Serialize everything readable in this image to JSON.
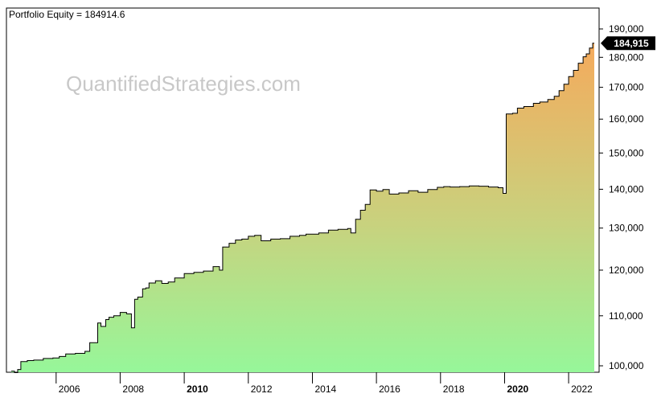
{
  "header": {
    "equity_label": "Portfolio Equity = 184914.6"
  },
  "watermark": {
    "text": "QuantifiedStrategies.com"
  },
  "colors": {
    "background": "#ffffff",
    "plot_border": "#000000",
    "gradient_top": "#f5aa5c",
    "gradient_mid": "#c8d27e",
    "gradient_bottom": "#96f79a",
    "equity_line": "#000000",
    "watermark": "#c8c8c8",
    "last_value_badge_bg": "#000000",
    "last_value_badge_text": "#ffffff",
    "axis_text": "#000000"
  },
  "chart_data": {
    "type": "area",
    "title": "",
    "xlabel": "",
    "ylabel": "",
    "y_scale": "log",
    "ylim": [
      98200,
      193800
    ],
    "xlim": [
      2004.55,
      2022.85
    ],
    "grid": false,
    "legend": "none",
    "last_value_label": "184,915",
    "last_value": 184914.6,
    "x_ticks": [
      {
        "label": "2006",
        "value": 2006,
        "bold": false
      },
      {
        "label": "2008",
        "value": 2008,
        "bold": false
      },
      {
        "label": "2010",
        "value": 2010,
        "bold": true
      },
      {
        "label": "2012",
        "value": 2012,
        "bold": false
      },
      {
        "label": "2014",
        "value": 2014,
        "bold": false
      },
      {
        "label": "2016",
        "value": 2016,
        "bold": false
      },
      {
        "label": "2018",
        "value": 2018,
        "bold": false
      },
      {
        "label": "2020",
        "value": 2020,
        "bold": true
      },
      {
        "label": "2022",
        "value": 2022,
        "bold": false
      }
    ],
    "y_ticks": [
      {
        "label": "100,000",
        "value": 100000
      },
      {
        "label": "110,000",
        "value": 110000
      },
      {
        "label": "120,000",
        "value": 120000
      },
      {
        "label": "130,000",
        "value": 130000
      },
      {
        "label": "140,000",
        "value": 140000
      },
      {
        "label": "150,000",
        "value": 150000
      },
      {
        "label": "160,000",
        "value": 160000
      },
      {
        "label": "170,000",
        "value": 170000
      },
      {
        "label": "180,000",
        "value": 180000
      },
      {
        "label": "190,000",
        "value": 190000
      }
    ],
    "series": [
      {
        "x": [
          2004.6,
          2004.7,
          2004.8,
          2004.9,
          2005.1,
          2005.3,
          2005.6,
          2005.9,
          2006.1,
          2006.3,
          2006.6,
          2006.9,
          2007.05,
          2007.3,
          2007.4,
          2007.55,
          2007.65,
          2007.8,
          2008.0,
          2008.2,
          2008.35,
          2008.45,
          2008.55,
          2008.7,
          2008.8,
          2008.9,
          2009.1,
          2009.3,
          2009.5,
          2009.7,
          2010.0,
          2010.3,
          2010.6,
          2010.9,
          2011.1,
          2011.2,
          2011.4,
          2011.6,
          2011.8,
          2012.0,
          2012.2,
          2012.4,
          2012.7,
          2013.0,
          2013.3,
          2013.6,
          2013.8,
          2014.0,
          2014.2,
          2014.5,
          2014.8,
          2015.1,
          2015.2,
          2015.35,
          2015.5,
          2015.65,
          2015.8,
          2016.0,
          2016.2,
          2016.4,
          2016.7,
          2017.0,
          2017.3,
          2017.6,
          2017.9,
          2018.1,
          2018.3,
          2018.6,
          2018.9,
          2019.2,
          2019.5,
          2019.8,
          2019.95,
          2020.05,
          2020.25,
          2020.4,
          2020.6,
          2020.9,
          2021.1,
          2021.35,
          2021.55,
          2021.7,
          2021.85,
          2022.0,
          2022.15,
          2022.3,
          2022.45,
          2022.55,
          2022.65,
          2022.75
        ],
        "y": [
          99000,
          98700,
          99300,
          100800,
          101000,
          101100,
          101400,
          101500,
          101800,
          102300,
          102400,
          102800,
          104500,
          108500,
          107800,
          109200,
          109700,
          110000,
          110700,
          110400,
          107500,
          113500,
          114000,
          115800,
          116000,
          117100,
          117600,
          117000,
          117300,
          118200,
          119200,
          119500,
          119800,
          120800,
          120000,
          125400,
          126300,
          127100,
          127300,
          128000,
          128200,
          126900,
          127300,
          127400,
          128000,
          128200,
          128500,
          128500,
          128800,
          129500,
          129700,
          129900,
          128800,
          132200,
          134500,
          136000,
          139800,
          139500,
          139900,
          138700,
          139000,
          139600,
          139200,
          139900,
          140500,
          140700,
          140600,
          140700,
          140900,
          140800,
          140600,
          140400,
          138900,
          161600,
          161800,
          163400,
          163900,
          164900,
          165300,
          166100,
          167100,
          168900,
          171000,
          173500,
          175600,
          178000,
          180200,
          181200,
          183200,
          184914.6
        ]
      }
    ]
  }
}
